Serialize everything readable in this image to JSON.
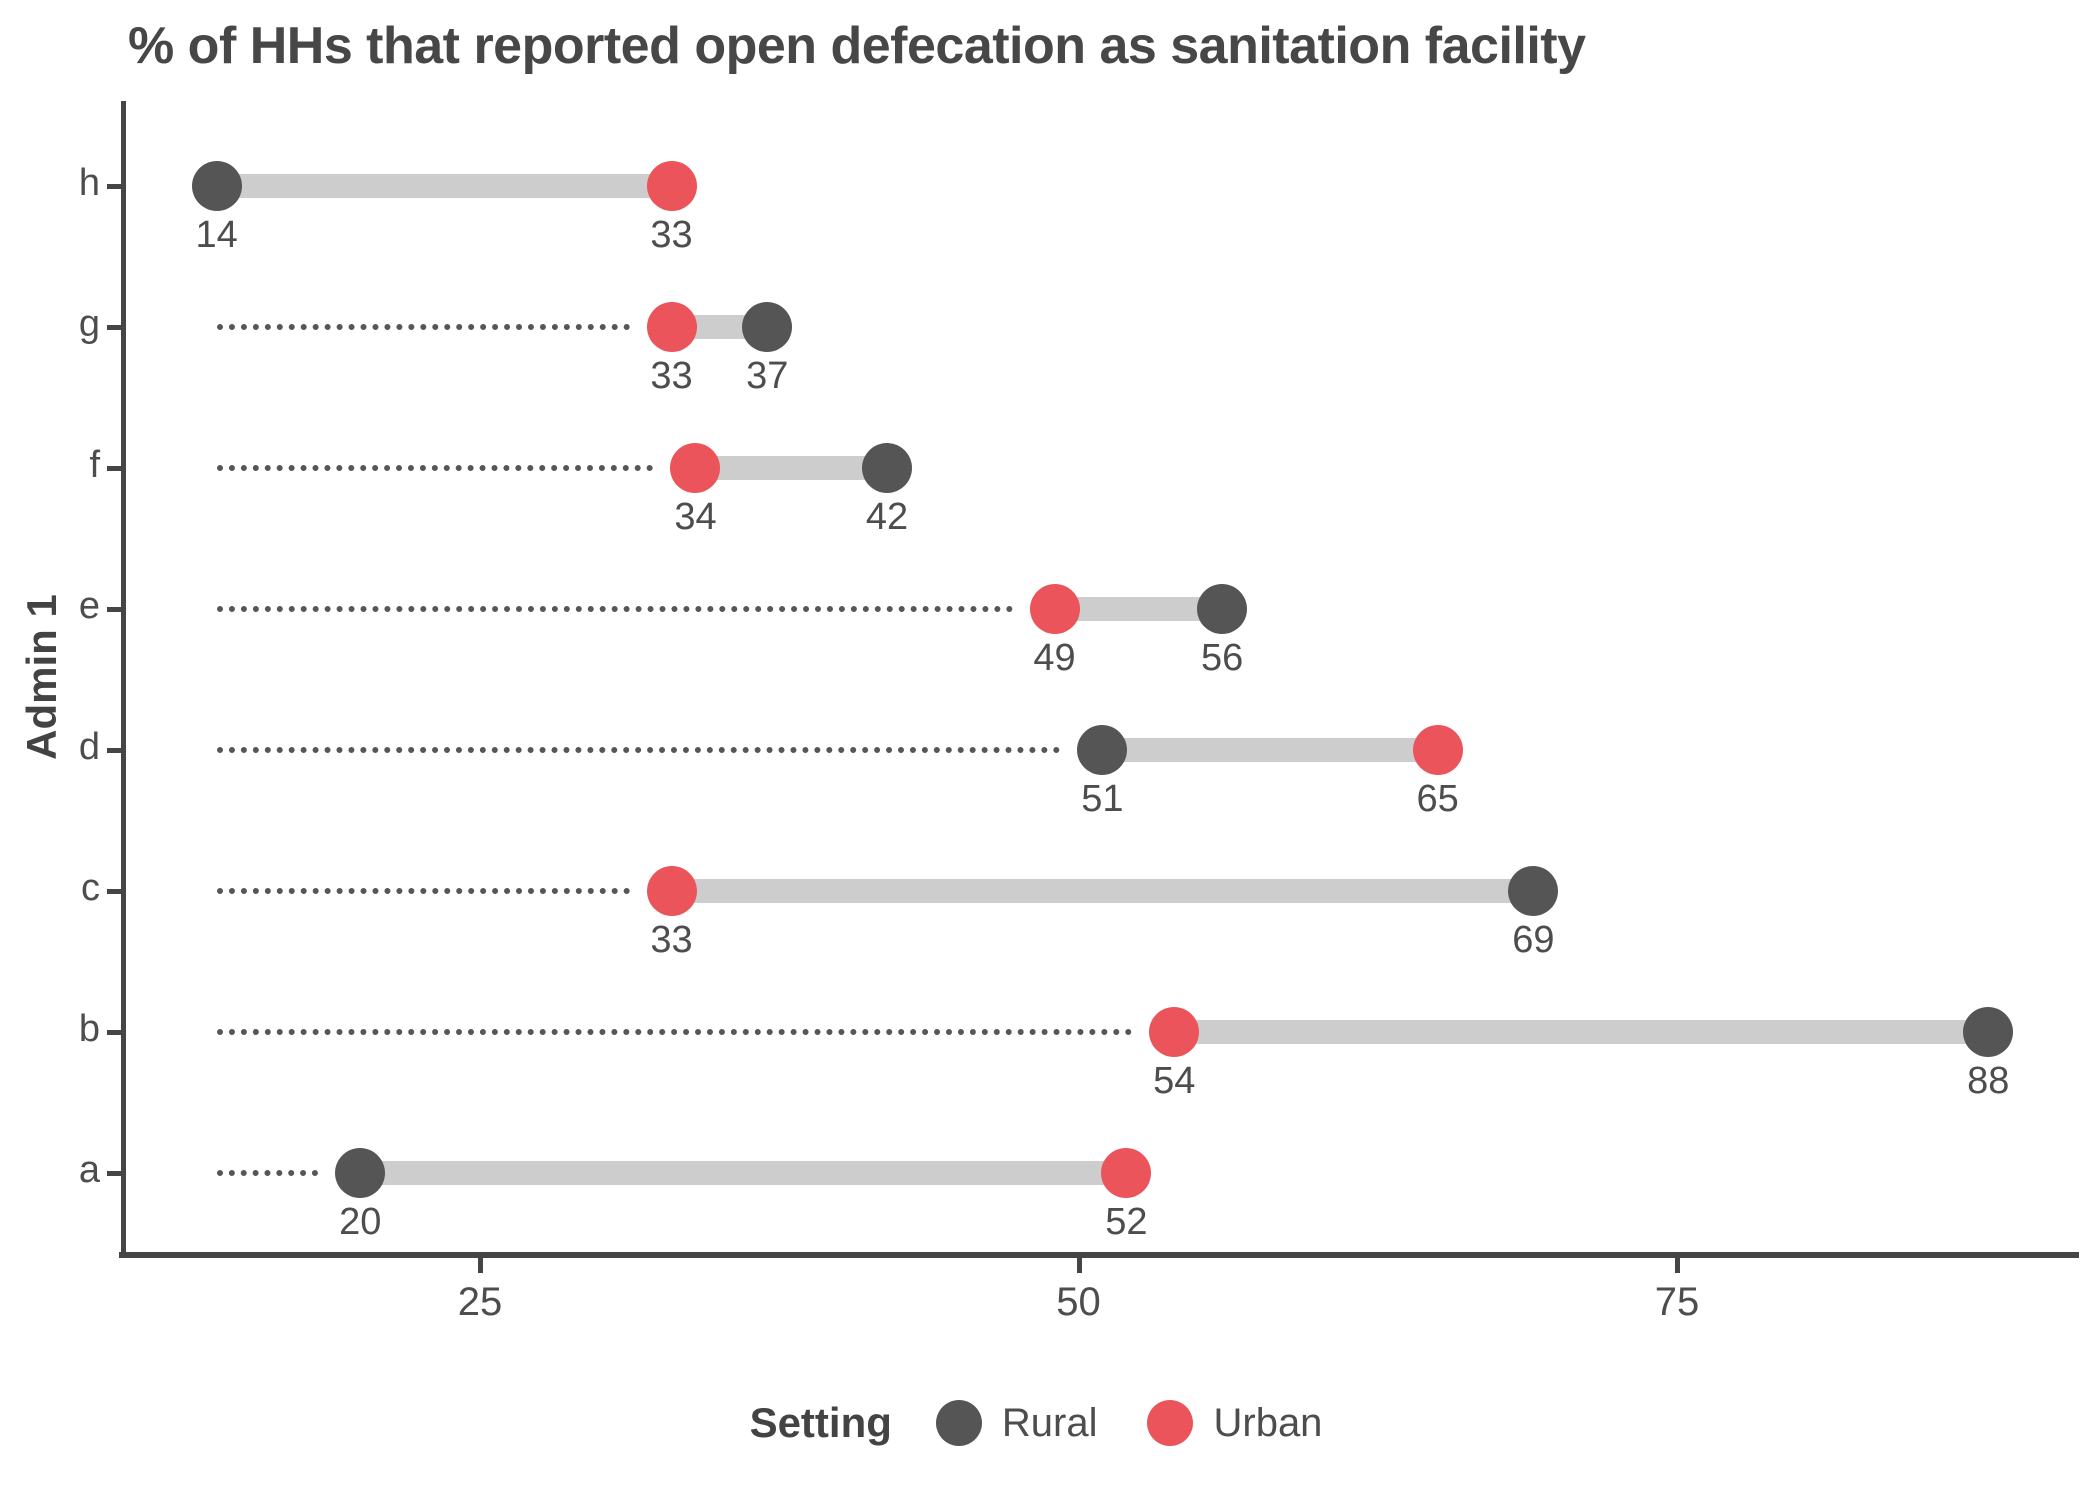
{
  "title": "% of HHs that reported open defecation as sanitation facility",
  "chart_data": {
    "type": "dumbbell",
    "title": "% of HHs that reported open defecation as sanitation facility",
    "xlabel": "",
    "ylabel": "Admin 1",
    "x_ticks": [
      25,
      50,
      75
    ],
    "x_domain": [
      14,
      88
    ],
    "grid": false,
    "value_labels_shown": true,
    "leader_line_style": "dotted",
    "connector_color": "#cdcdcd",
    "leader_color": "#565656",
    "axis_color": "#454545",
    "text_color": "#4d4d4d",
    "legend": {
      "title": "Setting",
      "position": "bottom",
      "entries": [
        {
          "label": "Rural",
          "color": "#555555"
        },
        {
          "label": "Urban",
          "color": "#EA545A"
        }
      ]
    },
    "categories": [
      "h",
      "g",
      "f",
      "e",
      "d",
      "c",
      "b",
      "a"
    ],
    "series": [
      {
        "name": "Rural",
        "color": "#555555",
        "values": [
          14,
          37,
          42,
          56,
          51,
          69,
          88,
          20
        ]
      },
      {
        "name": "Urban",
        "color": "#EA545A",
        "values": [
          33,
          33,
          34,
          49,
          65,
          33,
          54,
          52
        ]
      }
    ]
  }
}
